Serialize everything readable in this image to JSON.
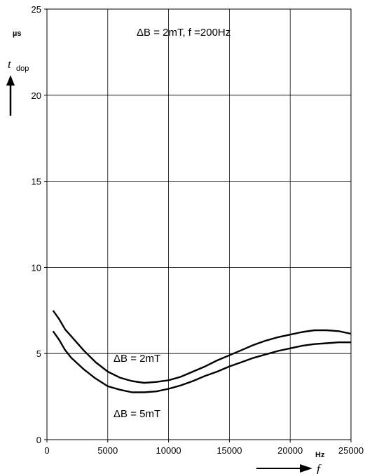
{
  "chart_data": {
    "type": "line",
    "title": "ΔB = 2mT,  f =200Hz",
    "xlabel": "f",
    "x_unit": "Hz",
    "ylabel_main": "t",
    "ylabel_sub": "dop",
    "y_unit": "µs",
    "xlim": [
      0,
      25000
    ],
    "ylim": [
      0,
      25
    ],
    "x_ticks": [
      0,
      5000,
      10000,
      15000,
      20000,
      25000
    ],
    "x_tick_labels": [
      "0",
      "5000",
      "10000",
      "15000",
      "20000",
      "25000"
    ],
    "y_ticks": [
      0,
      5,
      10,
      15,
      20,
      25
    ],
    "y_tick_labels": [
      "0",
      "5",
      "10",
      "15",
      "20",
      "25"
    ],
    "grid": true,
    "series": [
      {
        "name": "ΔB = 2mT",
        "x": [
          500,
          1000,
          1500,
          2000,
          3000,
          4000,
          5000,
          6000,
          7000,
          8000,
          9000,
          10000,
          11000,
          12000,
          13000,
          14000,
          15000,
          16000,
          17000,
          18000,
          19000,
          20000,
          21000,
          22000,
          23000,
          24000,
          25000
        ],
        "y": [
          7.5,
          7.0,
          6.4,
          6.0,
          5.2,
          4.5,
          3.95,
          3.6,
          3.4,
          3.3,
          3.35,
          3.45,
          3.65,
          3.95,
          4.25,
          4.6,
          4.9,
          5.2,
          5.5,
          5.75,
          5.95,
          6.1,
          6.25,
          6.35,
          6.35,
          6.3,
          6.15
        ]
      },
      {
        "name": "ΔB = 5mT",
        "x": [
          500,
          1000,
          1500,
          2000,
          3000,
          4000,
          5000,
          6000,
          7000,
          8000,
          9000,
          10000,
          11000,
          12000,
          13000,
          14000,
          15000,
          16000,
          17000,
          18000,
          19000,
          20000,
          21000,
          22000,
          23000,
          24000,
          25000
        ],
        "y": [
          6.3,
          5.8,
          5.2,
          4.75,
          4.1,
          3.55,
          3.1,
          2.9,
          2.75,
          2.75,
          2.8,
          2.95,
          3.15,
          3.4,
          3.7,
          3.95,
          4.25,
          4.5,
          4.75,
          4.95,
          5.15,
          5.3,
          5.45,
          5.55,
          5.6,
          5.65,
          5.65
        ]
      }
    ],
    "annotations": [
      {
        "text": "ΔB = 2mT"
      },
      {
        "text": "ΔB = 5mT"
      }
    ]
  }
}
